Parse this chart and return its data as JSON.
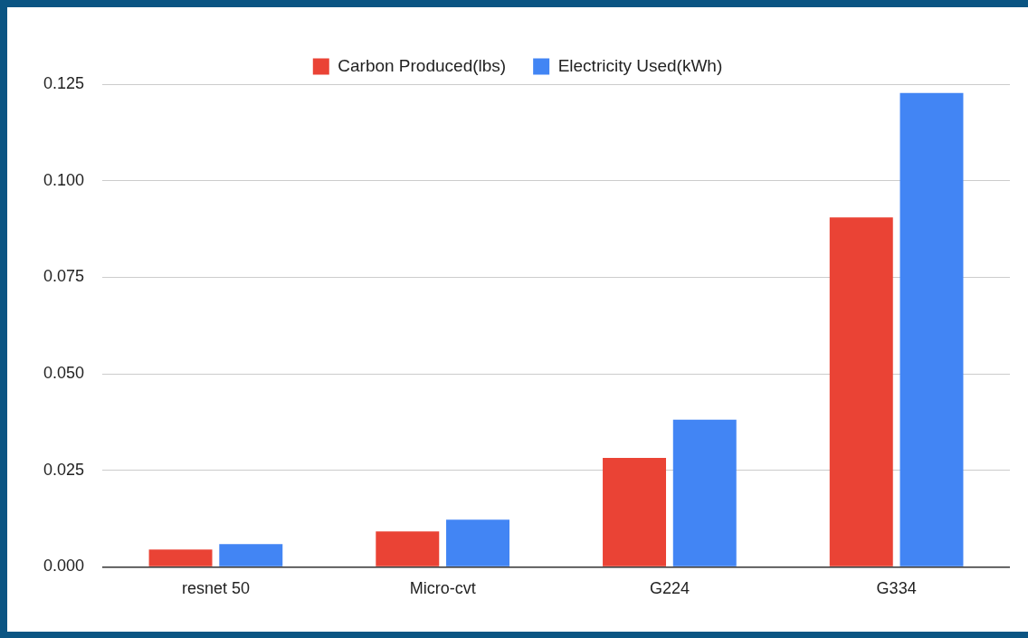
{
  "chart_data": {
    "type": "bar",
    "categories": [
      "resnet 50",
      "Micro-cvt",
      "G224",
      "G334"
    ],
    "series": [
      {
        "name": "Carbon Produced(lbs)",
        "color": "#ea4335",
        "values": [
          0.0045,
          0.0092,
          0.0282,
          0.0905
        ]
      },
      {
        "name": "Electricity Used(kWh)",
        "color": "#4285f4",
        "values": [
          0.0059,
          0.0122,
          0.0381,
          0.1227
        ]
      }
    ],
    "ylim": [
      0,
      0.125
    ],
    "yticks": [
      {
        "value": 0,
        "label": "0.000"
      },
      {
        "value": 0.025,
        "label": "0.025"
      },
      {
        "value": 0.05,
        "label": "0.050"
      },
      {
        "value": 0.075,
        "label": "0.075"
      },
      {
        "value": 0.1,
        "label": "0.100"
      },
      {
        "value": 0.125,
        "label": "0.125"
      }
    ],
    "grid": "y",
    "legend": "top"
  }
}
